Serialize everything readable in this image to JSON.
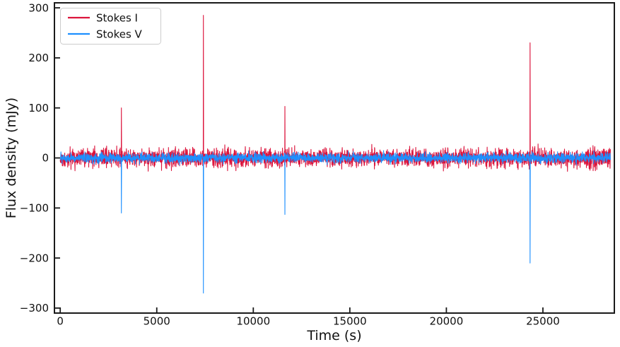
{
  "chart_data": {
    "type": "line",
    "xlabel": "Time (s)",
    "ylabel": "Flux density (mJy)",
    "xlim": [
      -300,
      28700
    ],
    "ylim": [
      -310,
      310
    ],
    "xticks": [
      0,
      5000,
      10000,
      15000,
      20000,
      25000
    ],
    "yticks": [
      -300,
      -200,
      -100,
      0,
      100,
      200,
      300
    ],
    "grid": false,
    "legend_position": "upper-left",
    "axis_color": "#1a1a1a",
    "time_range": [
      0,
      28500
    ],
    "sample_step_s": 9,
    "noise_seed": 20240621,
    "series": [
      {
        "name": "Stokes I",
        "color": "#dc143c",
        "noise_sigma_mjy": 9,
        "noise_sigma_late_mjy": 11.5,
        "late_start_s": 27200,
        "bursts": [
          {
            "t_s": 3165,
            "peak_mjy": 100
          },
          {
            "t_s": 7415,
            "peak_mjy": 285
          },
          {
            "t_s": 11635,
            "peak_mjy": 103
          },
          {
            "t_s": 24340,
            "peak_mjy": 230
          }
        ]
      },
      {
        "name": "Stokes V",
        "color": "#1e90ff",
        "noise_sigma_mjy": 4.6,
        "bursts": [
          {
            "t_s": 3165,
            "peak_mjy": -110
          },
          {
            "t_s": 7415,
            "peak_mjy": -270
          },
          {
            "t_s": 11635,
            "peak_mjy": -113
          },
          {
            "t_s": 24340,
            "peak_mjy": -210
          }
        ]
      }
    ]
  }
}
